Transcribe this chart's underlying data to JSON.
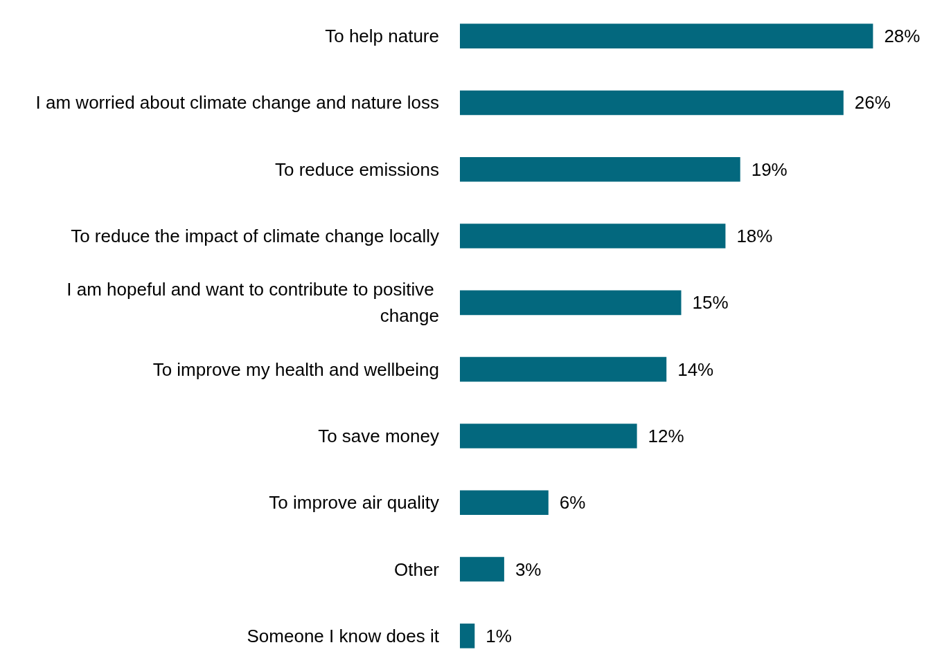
{
  "chart_data": {
    "type": "bar",
    "orientation": "horizontal",
    "categories": [
      "To help nature",
      "I am worried about climate change and nature loss",
      "To reduce emissions",
      "To reduce the impact of climate change locally",
      "I am hopeful and want to contribute to positive change",
      "To improve my health and wellbeing",
      "To save money",
      "To improve air quality",
      "Other",
      "Someone I know does it"
    ],
    "values": [
      28,
      26,
      19,
      18,
      15,
      14,
      12,
      6,
      3,
      1
    ],
    "value_labels": [
      "28%",
      "26%",
      "19%",
      "18%",
      "15%",
      "14%",
      "12%",
      "6%",
      "3%",
      "1%"
    ],
    "color": "#03687e"
  }
}
